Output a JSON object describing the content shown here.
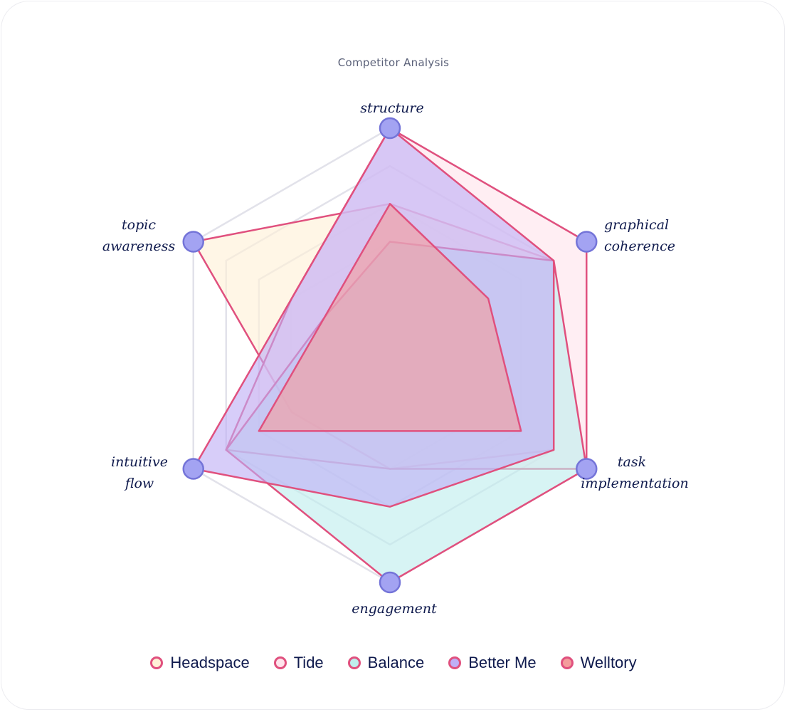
{
  "title": "Competitor Analysis",
  "axes": [
    {
      "label": [
        "structure"
      ]
    },
    {
      "label": [
        "graphical",
        "coherence"
      ]
    },
    {
      "label": [
        "task",
        "implementation"
      ]
    },
    {
      "label": [
        "engagement"
      ]
    },
    {
      "label": [
        "intuitive",
        "flow"
      ]
    },
    {
      "label": [
        "topic",
        "awareness"
      ]
    }
  ],
  "legend": [
    {
      "name": "Headspace"
    },
    {
      "name": "Tide"
    },
    {
      "name": "Balance"
    },
    {
      "name": "Better Me"
    },
    {
      "name": "Welltory"
    }
  ],
  "colors": {
    "stroke": "#e0507e",
    "grid": "#e2e2ea",
    "vertex_fill": "#a3a3f2",
    "vertex_stroke": "#7474d8",
    "Headspace": "#fff0d6",
    "Tide": "#ffe4ec",
    "Balance": "#bfeeed",
    "Better Me": "#bfaef6",
    "Welltory": "#f49c9c"
  },
  "chart_data": {
    "type": "radar",
    "title": "Competitor Analysis",
    "categories": [
      "structure",
      "graphical coherence",
      "task implementation",
      "engagement",
      "intuitive flow",
      "topic awareness"
    ],
    "scale": [
      0,
      6
    ],
    "grid_levels": [
      3,
      4,
      5,
      6
    ],
    "legend_position": "bottom",
    "series": [
      {
        "name": "Headspace",
        "values": [
          4,
          5,
          5,
          3,
          3,
          6
        ]
      },
      {
        "name": "Tide",
        "values": [
          6,
          6,
          6,
          3,
          5,
          3
        ]
      },
      {
        "name": "Balance",
        "values": [
          3,
          5,
          6,
          6,
          5,
          2
        ]
      },
      {
        "name": "Better Me",
        "values": [
          6,
          5,
          5,
          4,
          6,
          3
        ]
      },
      {
        "name": "Welltory",
        "values": [
          4,
          3,
          4,
          2,
          4,
          2
        ]
      }
    ]
  }
}
